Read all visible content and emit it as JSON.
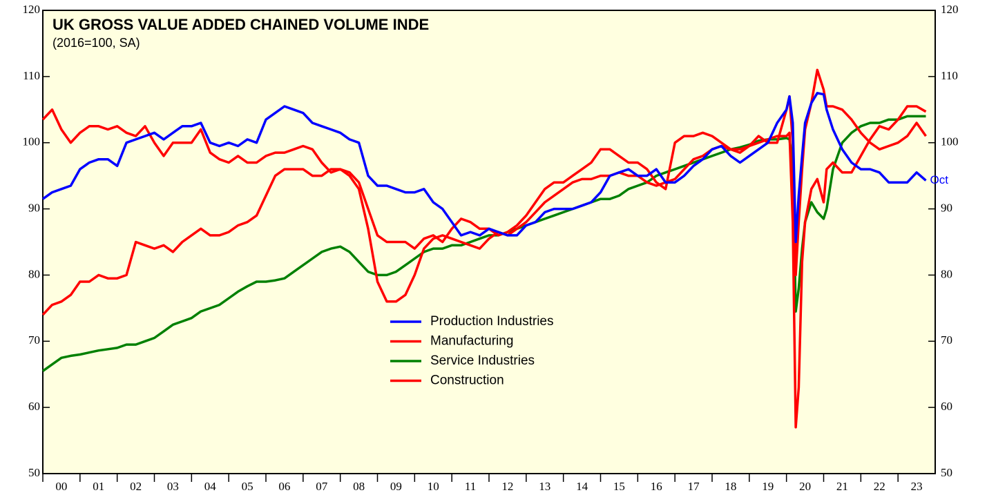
{
  "chart_data": {
    "type": "line",
    "title": "UK GROSS VALUE ADDED CHAINED VOLUME INDE",
    "subtitle": "(2016=100, SA)",
    "end_label": "Oct",
    "x": [
      2000,
      2000.25,
      2000.5,
      2000.75,
      2001,
      2001.25,
      2001.5,
      2001.75,
      2002,
      2002.25,
      2002.5,
      2002.75,
      2003,
      2003.25,
      2003.5,
      2003.75,
      2004,
      2004.25,
      2004.5,
      2004.75,
      2005,
      2005.25,
      2005.5,
      2005.75,
      2006,
      2006.25,
      2006.5,
      2006.75,
      2007,
      2007.25,
      2007.5,
      2007.75,
      2008,
      2008.25,
      2008.5,
      2008.75,
      2009,
      2009.25,
      2009.5,
      2009.75,
      2010,
      2010.25,
      2010.5,
      2010.75,
      2011,
      2011.25,
      2011.5,
      2011.75,
      2012,
      2012.25,
      2012.5,
      2012.75,
      2013,
      2013.25,
      2013.5,
      2013.75,
      2014,
      2014.25,
      2014.5,
      2014.75,
      2015,
      2015.25,
      2015.5,
      2015.75,
      2016,
      2016.25,
      2016.5,
      2016.75,
      2017,
      2017.25,
      2017.5,
      2017.75,
      2018,
      2018.25,
      2018.5,
      2018.75,
      2019,
      2019.25,
      2019.5,
      2019.75,
      2020,
      2020.08,
      2020.17,
      2020.25,
      2020.33,
      2020.42,
      2020.5,
      2020.67,
      2020.83,
      2021,
      2021.08,
      2021.25,
      2021.5,
      2021.75,
      2022,
      2022.25,
      2022.5,
      2022.75,
      2023,
      2023.25,
      2023.5,
      2023.75
    ],
    "series": [
      {
        "name": "Production Industries",
        "color": "#0000ff",
        "values": [
          91.5,
          92.5,
          93,
          93.5,
          96,
          97,
          97.5,
          97.5,
          96.5,
          100,
          100.5,
          101,
          101.5,
          100.5,
          101.5,
          102.5,
          102.5,
          103,
          100,
          99.5,
          100,
          99.5,
          100.5,
          100,
          103.5,
          104.5,
          105.5,
          105,
          104.5,
          103,
          102.5,
          102,
          101.5,
          100.5,
          100,
          95,
          93.5,
          93.5,
          93,
          92.5,
          92.5,
          93,
          91,
          90,
          88,
          86,
          86.5,
          86,
          87,
          86.5,
          86,
          86,
          87.5,
          88,
          89.5,
          90,
          90,
          90,
          90.5,
          91,
          92.5,
          95,
          95.5,
          96,
          95,
          95,
          96,
          94,
          94,
          95,
          96.5,
          97.5,
          99,
          99.5,
          98,
          97,
          98,
          99,
          100,
          103,
          105,
          107,
          103,
          85,
          92,
          98,
          103,
          106,
          107.5,
          107.3,
          105,
          102,
          99,
          97,
          96,
          96,
          95.5,
          94,
          94,
          94,
          95.5,
          94.3
        ]
      },
      {
        "name": "Manufacturing",
        "color": "#ff0000",
        "values": [
          103.5,
          105,
          102,
          100,
          101.5,
          102.5,
          102.5,
          102,
          102.5,
          101.5,
          101,
          102.5,
          100,
          98,
          100,
          100,
          100,
          102,
          98.5,
          97.5,
          97,
          98,
          97,
          97,
          98,
          98.5,
          98.5,
          99,
          99.5,
          99,
          97,
          95.5,
          96,
          95,
          93,
          87,
          79,
          76,
          76,
          77,
          80,
          84,
          85.5,
          86,
          85.5,
          85,
          84.5,
          84,
          85.5,
          86.5,
          86,
          87,
          88,
          89.5,
          91,
          92,
          93,
          94,
          94.5,
          94.5,
          95,
          95,
          95.5,
          95,
          95,
          94,
          93.5,
          94,
          94.5,
          96,
          97.5,
          98,
          99,
          99.5,
          99,
          98.5,
          99.5,
          101,
          100,
          100,
          105,
          107,
          100,
          80,
          88,
          96,
          102,
          106,
          111,
          108,
          105.5,
          105.5,
          105,
          103.5,
          101.5,
          100,
          99,
          99.5,
          100,
          101,
          103,
          101
        ]
      },
      {
        "name": "Service Industries",
        "color": "#008000",
        "values": [
          65.5,
          66.5,
          67.5,
          67.8,
          68,
          68.3,
          68.6,
          68.8,
          69,
          69.5,
          69.5,
          70,
          70.5,
          71.5,
          72.5,
          73,
          73.5,
          74.5,
          75,
          75.5,
          76.5,
          77.5,
          78.3,
          79,
          79,
          79.2,
          79.5,
          80.5,
          81.5,
          82.5,
          83.5,
          84,
          84.3,
          83.5,
          82,
          80.5,
          80,
          80,
          80.5,
          81.5,
          82.5,
          83.5,
          84,
          84,
          84.5,
          84.5,
          85,
          85.5,
          86,
          86,
          86.5,
          87,
          87.5,
          88,
          88.5,
          89,
          89.5,
          90,
          90.5,
          91,
          91.5,
          91.5,
          92,
          93,
          93.5,
          94,
          95,
          95.5,
          96,
          96.5,
          97,
          97.5,
          98,
          98.5,
          99,
          99.3,
          99.7,
          100.3,
          100.5,
          100.5,
          100.7,
          100.5,
          97,
          74.5,
          78,
          84,
          88,
          91,
          89.5,
          88.5,
          90,
          96,
          100,
          101.5,
          102.5,
          103,
          103,
          103.5,
          103.5,
          104,
          104,
          104
        ]
      },
      {
        "name": "Construction",
        "color": "#ff0000",
        "values": [
          74,
          75.5,
          76,
          77,
          79,
          79,
          80,
          79.5,
          79.5,
          80,
          85,
          84.5,
          84,
          84.5,
          83.5,
          85,
          86,
          87,
          86,
          86,
          86.5,
          87.5,
          88,
          89,
          92,
          95,
          96,
          96,
          96,
          95,
          95,
          96,
          96,
          95.5,
          94,
          90,
          86,
          85,
          85,
          85,
          84,
          85.5,
          86,
          85,
          87,
          88.5,
          88,
          87,
          87,
          86,
          86.5,
          87.5,
          89,
          91,
          93,
          94,
          94,
          95,
          96,
          97,
          99,
          99,
          98,
          97,
          97,
          96,
          94,
          93,
          100,
          101,
          101,
          101.5,
          101,
          100,
          99,
          99,
          99.5,
          100,
          100.5,
          101,
          101,
          101.5,
          88,
          57,
          63,
          82,
          88,
          93,
          94.5,
          91,
          96,
          97,
          95.5,
          95.5,
          98,
          100.5,
          102.5,
          102,
          103.5,
          105.5,
          105.5,
          104.7
        ]
      }
    ],
    "xlim": [
      2000,
      2024
    ],
    "xticks": [
      {
        "value": 2000.5,
        "label": "00"
      },
      {
        "value": 2001.5,
        "label": "01"
      },
      {
        "value": 2002.5,
        "label": "02"
      },
      {
        "value": 2003.5,
        "label": "03"
      },
      {
        "value": 2004.5,
        "label": "04"
      },
      {
        "value": 2005.5,
        "label": "05"
      },
      {
        "value": 2006.5,
        "label": "06"
      },
      {
        "value": 2007.5,
        "label": "07"
      },
      {
        "value": 2008.5,
        "label": "08"
      },
      {
        "value": 2009.5,
        "label": "09"
      },
      {
        "value": 2010.5,
        "label": "10"
      },
      {
        "value": 2011.5,
        "label": "11"
      },
      {
        "value": 2012.5,
        "label": "12"
      },
      {
        "value": 2013.5,
        "label": "13"
      },
      {
        "value": 2014.5,
        "label": "14"
      },
      {
        "value": 2015.5,
        "label": "15"
      },
      {
        "value": 2016.5,
        "label": "16"
      },
      {
        "value": 2017.5,
        "label": "17"
      },
      {
        "value": 2018.5,
        "label": "18"
      },
      {
        "value": 2019.5,
        "label": "19"
      },
      {
        "value": 2020.5,
        "label": "20"
      },
      {
        "value": 2021.5,
        "label": "21"
      },
      {
        "value": 2022.5,
        "label": "22"
      },
      {
        "value": 2023.5,
        "label": "23"
      }
    ],
    "ylim": [
      50,
      120
    ],
    "yticks": [
      50,
      60,
      70,
      80,
      90,
      100,
      110,
      120
    ],
    "y2lim": [
      50,
      120
    ],
    "y2ticks": [
      50,
      60,
      70,
      80,
      90,
      100,
      110,
      120
    ]
  }
}
